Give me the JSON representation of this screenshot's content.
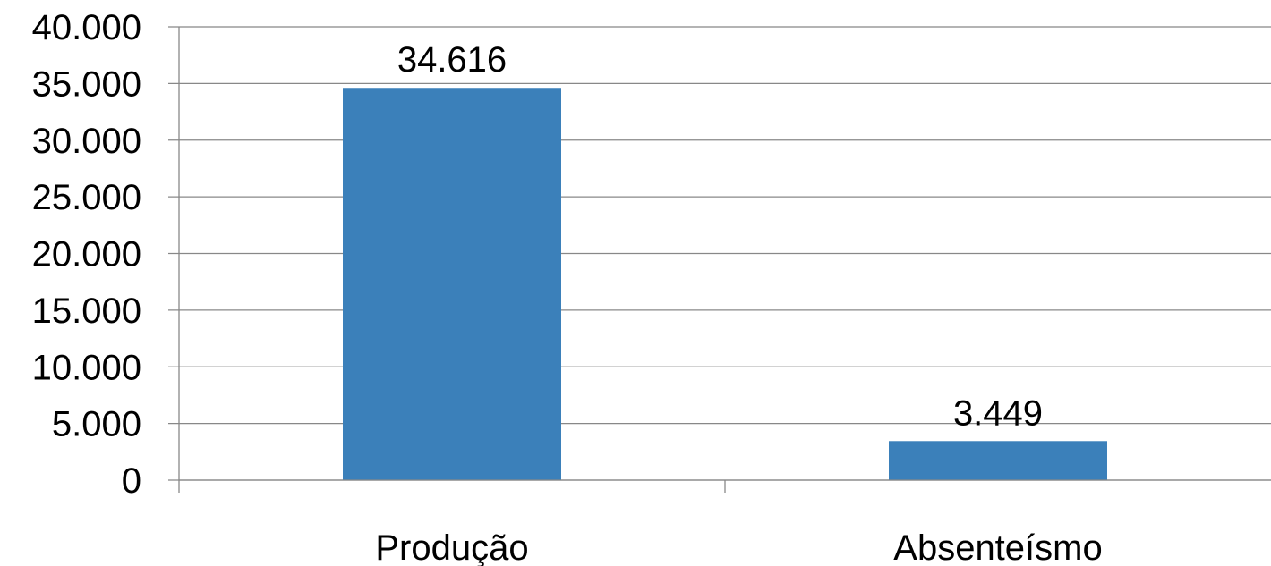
{
  "chart_data": {
    "type": "bar",
    "categories": [
      "Produção",
      "Absenteísmo"
    ],
    "values": [
      34616,
      3449
    ],
    "value_labels": [
      "34.616",
      "3.449"
    ],
    "title": "",
    "xlabel": "",
    "ylabel": "",
    "ylim": [
      0,
      40000
    ],
    "yticks": [
      0,
      5000,
      10000,
      15000,
      20000,
      25000,
      30000,
      35000,
      40000
    ],
    "ytick_labels": [
      "0",
      "5.000",
      "10.000",
      "15.000",
      "20.000",
      "25.000",
      "30.000",
      "35.000",
      "40.000"
    ],
    "grid": true,
    "legend": "none",
    "colors": {
      "bar": "#3B80BA",
      "grid": "#888888",
      "axis": "#888888"
    }
  }
}
